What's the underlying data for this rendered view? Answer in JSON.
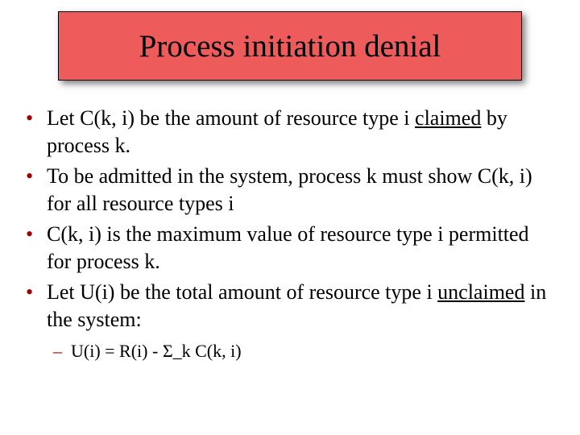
{
  "title": "Process initiation denial",
  "colors": {
    "title_bg": "#ed5b5b",
    "title_border": "#000000",
    "bullet_color": "#a00000",
    "text_color": "#000000",
    "background": "#ffffff"
  },
  "typography": {
    "title_fontsize": 39,
    "bullet_fontsize": 26,
    "sub_fontsize": 22,
    "font_family": "Times New Roman"
  },
  "bullets": [
    {
      "pre": "Let C(k, i) be the amount of resource type i ",
      "underlined": "claimed",
      "post": " by process k."
    },
    {
      "pre": "To be admitted in the system, process k must show C(k, i) for all resource types i",
      "underlined": "",
      "post": ""
    },
    {
      "pre": "C(k, i) is the maximum value of resource type i permitted for process k.",
      "underlined": "",
      "post": ""
    },
    {
      "pre": "Let U(i) be the total amount of resource type i ",
      "underlined": "unclaimed",
      "post": " in the system:"
    }
  ],
  "sub_bullet": "U(i) = R(i) - Σ_k C(k, i)"
}
